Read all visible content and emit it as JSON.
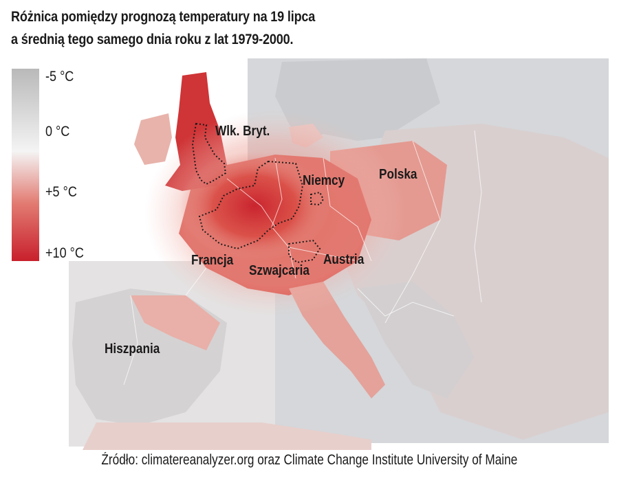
{
  "title": {
    "line1": "Różnica pomiędzy prognozą temperatury na 19 lipca",
    "line2": "a średnią tego samego dnia roku z lat 1979-2000."
  },
  "legend": {
    "labels": [
      "-5 °C",
      "0 °C",
      "+5 °C",
      "+10 °C"
    ],
    "colors": [
      "#b9b9b9",
      "#f4f4f4",
      "#e27b72",
      "#c8202c"
    ]
  },
  "countries": {
    "uk": "Wlk. Bryt.",
    "germany": "Niemcy",
    "poland": "Polska",
    "france": "Francja",
    "switzerland": "Szwajcaria",
    "austria": "Austria",
    "spain": "Hiszpania"
  },
  "source": "Źródło: climatereanalyzer.org oraz Climate Change Institute University of Maine"
}
